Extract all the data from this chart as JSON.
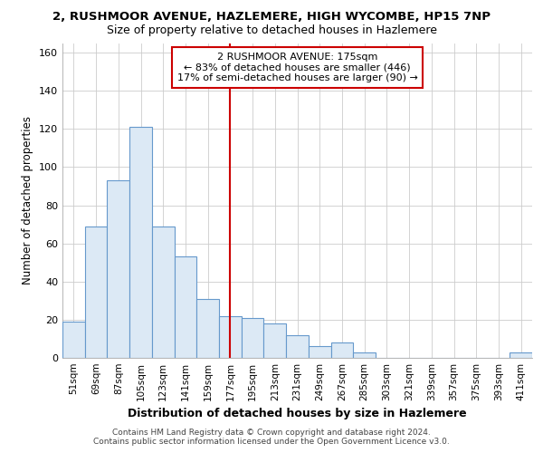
{
  "title_line1": "2, RUSHMOOR AVENUE, HAZLEMERE, HIGH WYCOMBE, HP15 7NP",
  "title_line2": "Size of property relative to detached houses in Hazlemere",
  "xlabel": "Distribution of detached houses by size in Hazlemere",
  "ylabel": "Number of detached properties",
  "bar_color": "#dce9f5",
  "bar_edge_color": "#6699cc",
  "background_color": "#ffffff",
  "categories": [
    "51sqm",
    "69sqm",
    "87sqm",
    "105sqm",
    "123sqm",
    "141sqm",
    "159sqm",
    "177sqm",
    "195sqm",
    "213sqm",
    "231sqm",
    "249sqm",
    "267sqm",
    "285sqm",
    "303sqm",
    "321sqm",
    "339sqm",
    "357sqm",
    "375sqm",
    "393sqm",
    "411sqm"
  ],
  "values": [
    19,
    69,
    93,
    121,
    69,
    53,
    31,
    22,
    21,
    18,
    12,
    6,
    8,
    3,
    0,
    0,
    0,
    0,
    0,
    0,
    3
  ],
  "vline_x": 7,
  "vline_color": "#cc0000",
  "annotation_line1": "2 RUSHMOOR AVENUE: 175sqm",
  "annotation_line2": "← 83% of detached houses are smaller (446)",
  "annotation_line3": "17% of semi-detached houses are larger (90) →",
  "annotation_box_color": "#ffffff",
  "annotation_box_edge": "#cc0000",
  "ylim": [
    0,
    165
  ],
  "yticks": [
    0,
    20,
    40,
    60,
    80,
    100,
    120,
    140,
    160
  ],
  "footer_line1": "Contains HM Land Registry data © Crown copyright and database right 2024.",
  "footer_line2": "Contains public sector information licensed under the Open Government Licence v3.0."
}
